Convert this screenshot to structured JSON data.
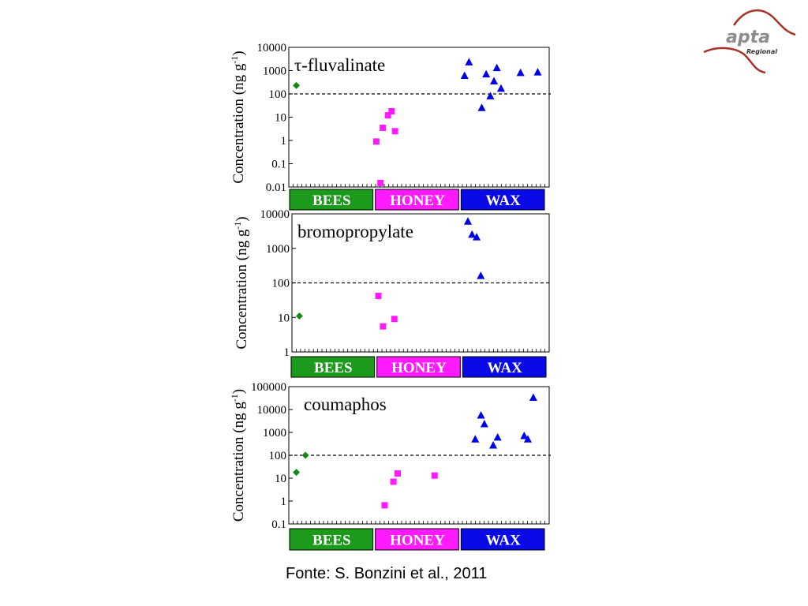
{
  "source_text": "Fonte: S. Bonzini et al., 2011",
  "logo": {
    "text": "apta",
    "subtext": "Regional",
    "color": "#a83228",
    "text_color": "#8c8c8c"
  },
  "ylabel": "Concentration (ng g",
  "ylabel_sup": "-1",
  "ylabel_close": ")",
  "colors": {
    "bees": "#138a13",
    "honey": "#ff1aff",
    "wax": "#0000e6",
    "band_bees": "#1b9a1b",
    "band_honey": "#ff1aff",
    "band_wax": "#0a0ae6"
  },
  "groups": [
    "BEES",
    "HONEY",
    "WAX"
  ],
  "chart_data": [
    {
      "type": "scatter",
      "title": "τ-fluvalinate",
      "yscale": "log",
      "ylim": [
        0.01,
        10000
      ],
      "yticks": [
        "0.01",
        "0.1",
        "1",
        "10",
        "100",
        "1000",
        "10000"
      ],
      "threshold": 100,
      "series": [
        {
          "name": "BEES",
          "marker": "diamond",
          "x": [
            2.9
          ],
          "y": [
            230
          ]
        },
        {
          "name": "HONEY",
          "marker": "square",
          "x": [
            33.6,
            35.2,
            36.1,
            38.1,
            39.5,
            40.8
          ],
          "y": [
            0.9,
            0.015,
            3.5,
            12,
            18,
            2.5
          ]
        },
        {
          "name": "WAX",
          "marker": "triangle",
          "x": [
            67.5,
            69.2,
            74.1,
            75.8,
            77.4,
            78.8,
            79.9,
            81.5,
            89.0,
            95.6
          ],
          "y": [
            600,
            2300,
            25,
            700,
            80,
            350,
            1300,
            170,
            800,
            850
          ]
        }
      ]
    },
    {
      "type": "scatter",
      "title": "bromopropylate",
      "yscale": "log",
      "ylim": [
        1,
        10000
      ],
      "yticks": [
        "1",
        "10",
        "100",
        "1000",
        "10000"
      ],
      "threshold": 100,
      "series": [
        {
          "name": "BEES",
          "marker": "diamond",
          "x": [
            2.9
          ],
          "y": [
            11
          ]
        },
        {
          "name": "HONEY",
          "marker": "square",
          "x": [
            33.6,
            35.4,
            39.8
          ],
          "y": [
            42,
            5.5,
            9
          ]
        },
        {
          "name": "WAX",
          "marker": "triangle",
          "x": [
            68.4,
            70.0,
            71.8,
            73.4
          ],
          "y": [
            6000,
            2500,
            2100,
            160
          ]
        }
      ]
    },
    {
      "type": "scatter",
      "title": "coumaphos",
      "yscale": "log",
      "ylim": [
        0.1,
        100000
      ],
      "yticks": [
        "0.1",
        "1",
        "10",
        "100",
        "1000",
        "10000",
        "100000"
      ],
      "threshold": 100,
      "series": [
        {
          "name": "BEES",
          "marker": "diamond",
          "x": [
            2.9,
            6.4
          ],
          "y": [
            18,
            100
          ]
        },
        {
          "name": "HONEY",
          "marker": "square",
          "x": [
            36.8,
            40.2,
            41.8,
            56.0
          ],
          "y": [
            0.65,
            7,
            16,
            13
          ]
        },
        {
          "name": "WAX",
          "marker": "triangle",
          "x": [
            71.6,
            73.8,
            75.1,
            78.5,
            80.2,
            90.4,
            91.8,
            93.9
          ],
          "y": [
            500,
            5500,
            2300,
            270,
            600,
            700,
            500,
            33000
          ]
        }
      ]
    }
  ]
}
